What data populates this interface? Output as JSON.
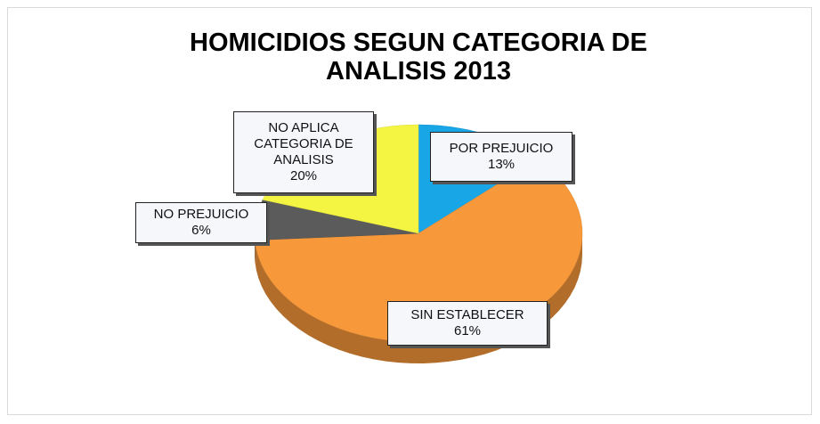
{
  "chart_data": {
    "type": "pie3d",
    "title": "HOMICIDIOS SEGUN CATEGORIA DE ANALISIS 2013",
    "categories": [
      "POR PREJUICIO",
      "SIN ESTABLECER",
      "NO PREJUICIO",
      "NO APLICA CATEGORIA DE ANALISIS"
    ],
    "values": [
      13,
      61,
      6,
      20
    ],
    "value_labels": [
      "13%",
      "61%",
      "6%",
      "20%"
    ],
    "colors": [
      "#19a6e6",
      "#f7983a",
      "#5b5b5b",
      "#f4f442"
    ]
  }
}
